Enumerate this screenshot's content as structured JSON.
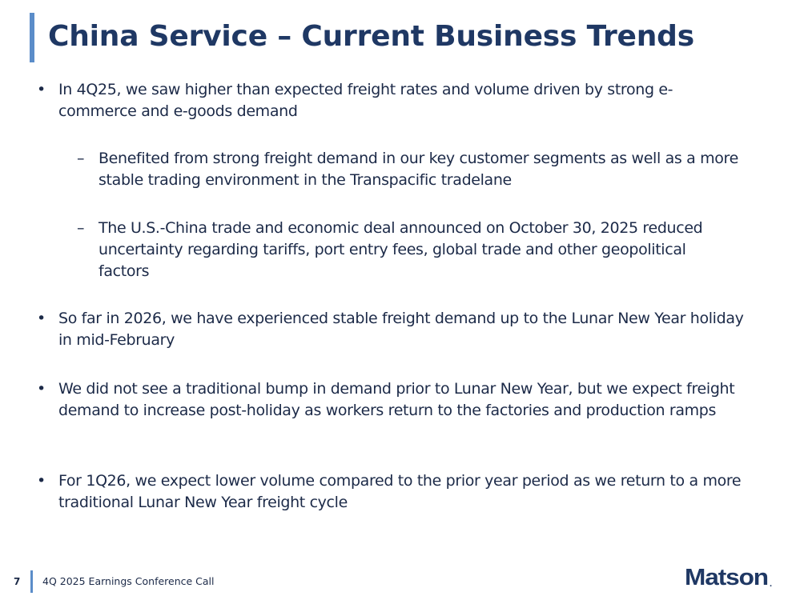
{
  "slide": {
    "title": "China Service – Current Business Trends",
    "bullets": [
      {
        "level": 1,
        "marker": "•",
        "text": "In 4Q25, we saw higher than expected freight rates and volume driven by strong e-commerce and e-goods demand"
      },
      {
        "level": 2,
        "marker": "–",
        "text": "Benefited from strong freight demand in our key customer segments as well as a more stable trading environment in the Transpacific tradelane"
      },
      {
        "level": 2,
        "marker": "–",
        "text": "The U.S.-China trade and economic deal announced on October 30, 2025 reduced uncertainty regarding tariffs, port entry fees, global trade and other geopolitical factors"
      },
      {
        "level": 1,
        "marker": "•",
        "text": "So far in 2026, we have experienced stable freight demand up to the Lunar New Year holiday in mid-February"
      },
      {
        "level": 1,
        "marker": "•",
        "text": "We did not see a traditional bump in demand prior to Lunar New Year, but we expect freight demand to increase post-holiday as workers return to the factories and production ramps"
      },
      {
        "level": 1,
        "marker": "•",
        "text": "For 1Q26, we expect lower volume compared to the prior year period as we return to a more traditional Lunar New Year freight cycle"
      }
    ]
  },
  "footer": {
    "page_number": "7",
    "text": "4Q 2025 Earnings Conference Call",
    "logo_text": "Matson",
    "logo_mark": "."
  },
  "colors": {
    "title": "#1f3864",
    "accent": "#5b8dc9",
    "body_text": "#1c2a48",
    "logo": "#1f3864"
  }
}
